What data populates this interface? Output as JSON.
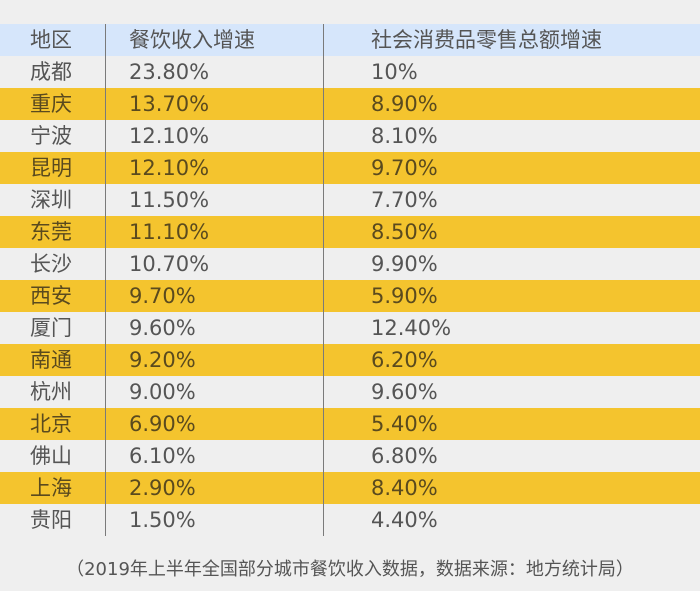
{
  "table": {
    "headers": [
      "地区",
      "餐饮收入增速",
      "社会消费品零售总额增速"
    ],
    "rows": [
      {
        "city": "成都",
        "catering_growth": "23.80%",
        "retail_growth": "10%"
      },
      {
        "city": "重庆",
        "catering_growth": "13.70%",
        "retail_growth": "8.90%"
      },
      {
        "city": "宁波",
        "catering_growth": "12.10%",
        "retail_growth": "8.10%"
      },
      {
        "city": "昆明",
        "catering_growth": "12.10%",
        "retail_growth": "9.70%"
      },
      {
        "city": "深圳",
        "catering_growth": "11.50%",
        "retail_growth": "7.70%"
      },
      {
        "city": "东莞",
        "catering_growth": "11.10%",
        "retail_growth": "8.50%"
      },
      {
        "city": "长沙",
        "catering_growth": "10.70%",
        "retail_growth": "9.90%"
      },
      {
        "city": "西安",
        "catering_growth": "9.70%",
        "retail_growth": "5.90%"
      },
      {
        "city": "厦门",
        "catering_growth": "9.60%",
        "retail_growth": "12.40%"
      },
      {
        "city": "南通",
        "catering_growth": "9.20%",
        "retail_growth": "6.20%"
      },
      {
        "city": "杭州",
        "catering_growth": "9.00%",
        "retail_growth": "9.60%"
      },
      {
        "city": "北京",
        "catering_growth": "6.90%",
        "retail_growth": "5.40%"
      },
      {
        "city": "佛山",
        "catering_growth": "6.10%",
        "retail_growth": "6.80%"
      },
      {
        "city": "上海",
        "catering_growth": "2.90%",
        "retail_growth": "8.40%"
      },
      {
        "city": "贵阳",
        "catering_growth": "1.50%",
        "retail_growth": "4.40%"
      }
    ]
  },
  "footnote": "（2019年上半年全国部分城市餐饮收入数据，数据来源：地方统计局）",
  "colors": {
    "header_bg": "#d6e6fb",
    "stripe_bg": "#f4c42e",
    "plain_bg": "#efefef",
    "text": "#555555"
  }
}
